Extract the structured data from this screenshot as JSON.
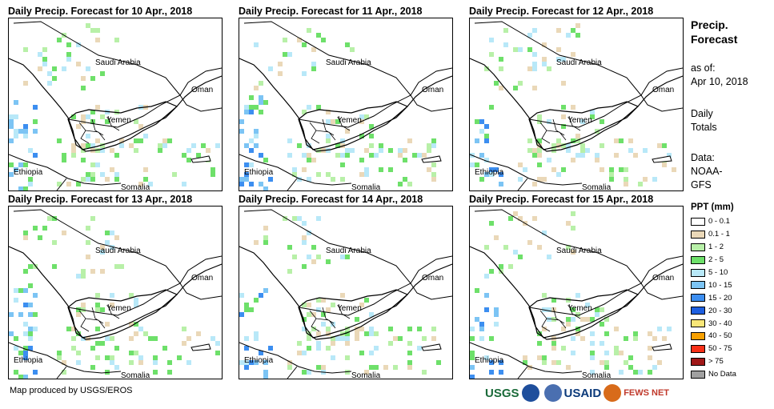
{
  "panels": [
    {
      "title": "Daily Precip. Forecast for 10 Apr., 2018"
    },
    {
      "title": "Daily Precip. Forecast for 11 Apr., 2018"
    },
    {
      "title": "Daily Precip. Forecast for 12 Apr., 2018"
    },
    {
      "title": "Daily Precip. Forecast for 13 Apr., 2018"
    },
    {
      "title": "Daily Precip. Forecast for 14 Apr., 2018"
    },
    {
      "title": "Daily Precip. Forecast for 15 Apr., 2018"
    }
  ],
  "places": {
    "saudi": "Saudi Arabia",
    "oman": "Oman",
    "yemen": "Yemen",
    "ethiopia": "Ethiopia",
    "somalia": "Somalia"
  },
  "sidebar": {
    "title_line1": "Precip.",
    "title_line2": "Forecast",
    "asof_line1": "as of:",
    "asof_line2": "Apr 10, 2018",
    "totals_line1": "Daily",
    "totals_line2": "Totals",
    "data_line1": "Data:",
    "data_line2": "NOAA-",
    "data_line3": "GFS"
  },
  "legend": {
    "title": "PPT (mm)",
    "items": [
      {
        "label": "0 - 0.1",
        "color": "#ffffff"
      },
      {
        "label": "0.1 - 1",
        "color": "#ead8b8"
      },
      {
        "label": "1 - 2",
        "color": "#b8f0a8"
      },
      {
        "label": "2 - 5",
        "color": "#6ee06a"
      },
      {
        "label": "5 - 10",
        "color": "#b8e8f8"
      },
      {
        "label": "10 - 15",
        "color": "#7cc4f4"
      },
      {
        "label": "15 - 20",
        "color": "#3c8ef0"
      },
      {
        "label": "20 - 30",
        "color": "#1e5fe0"
      },
      {
        "label": "30 - 40",
        "color": "#f8e678"
      },
      {
        "label": "40 - 50",
        "color": "#f8a000"
      },
      {
        "label": "50 - 75",
        "color": "#f83018"
      },
      {
        "label": "> 75",
        "color": "#a01818"
      },
      {
        "label": "No Data",
        "color": "#a0a0a0"
      }
    ]
  },
  "footer": {
    "credit": "Map produced by USGS/EROS"
  },
  "logos": {
    "usgs": "USGS",
    "noaa": "NOAA",
    "usaid": "USAID",
    "fewsnet": "FEWS NET"
  }
}
